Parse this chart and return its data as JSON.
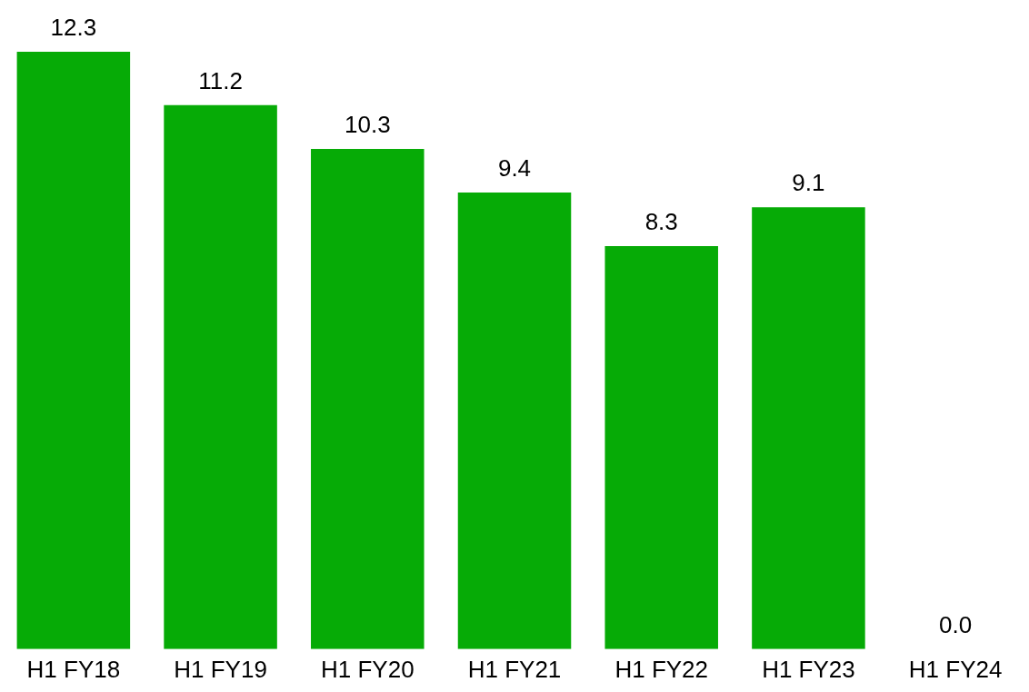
{
  "chart_data": {
    "type": "bar",
    "categories": [
      "H1 FY18",
      "H1 FY19",
      "H1 FY20",
      "H1 FY21",
      "H1 FY22",
      "H1 FY23",
      "H1 FY24"
    ],
    "values": [
      12.3,
      11.2,
      10.3,
      9.4,
      8.3,
      9.1,
      0.0
    ],
    "color": "#06ab06",
    "value_labels": [
      "12.3",
      "11.2",
      "10.3",
      "9.4",
      "8.3",
      "9.1",
      "0.0"
    ]
  }
}
